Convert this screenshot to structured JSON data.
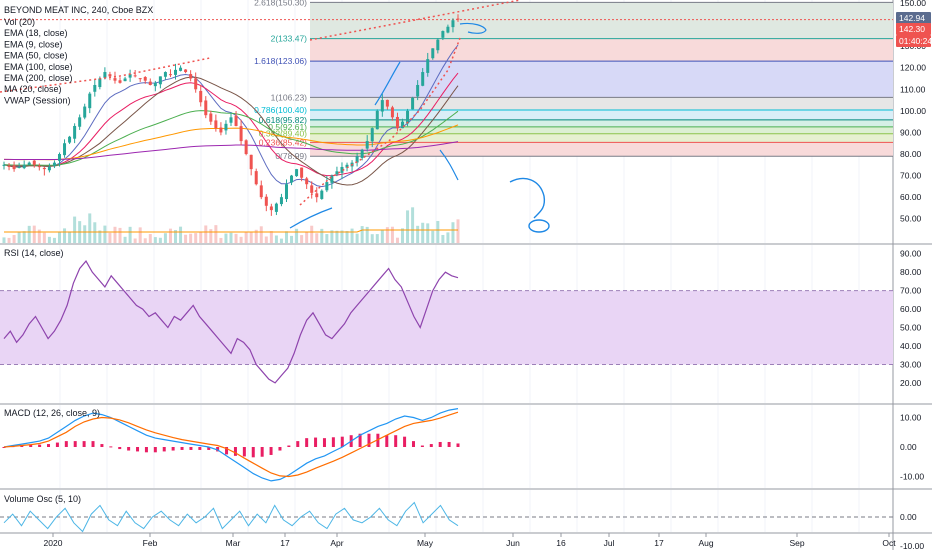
{
  "header": {
    "symbol_line": "BEYOND MEAT INC, 240, Cboe BZX"
  },
  "main_legend": [
    "Vol (20)",
    "EMA (18, close)",
    "EMA (9, close)",
    "EMA (50, close)",
    "EMA (100, close)",
    "EMA (200, close)",
    "MA (20, close)",
    "VWAP (Session)"
  ],
  "pane_titles": {
    "rsi": "RSI (14, close)",
    "macd": "MACD (12, 26, close, 9)",
    "vol_osc": "Volume Osc (5, 10)"
  },
  "price_badges": {
    "last": "142.94",
    "current": "142.30",
    "countdown": "01:40:24"
  },
  "colors": {
    "up": "#26a69a",
    "down": "#ef5350",
    "badge_last": "#5b6c8f",
    "badge_current": "#ef5350",
    "ema18": "#e91e63",
    "ema9": "#5c6bc0",
    "ema50": "#4caf50",
    "ema100": "#ff9800",
    "ema200": "#9c27b0",
    "ma20": "#795548",
    "rsi_line": "#8e44ad",
    "rsi_band": "#e9d5f5",
    "macd_line": "#2196f3",
    "signal_line": "#ff6d00",
    "histogram": "#e91e63",
    "vol_osc_line": "#4db6e6",
    "trend_line": "#ef5350",
    "drawing": "#1e88e5"
  },
  "x_axis": [
    "2020",
    "Feb",
    "Mar",
    "17",
    "Apr",
    "May",
    "Jun",
    "16",
    "Jul",
    "17",
    "Aug",
    "Sep",
    "Oct"
  ],
  "chart_data": [
    {
      "type": "candlestick",
      "pane": "price",
      "y_ticks": [
        "150.00",
        "140.00",
        "130.00",
        "120.00",
        "110.00",
        "100.00",
        "90.00",
        "80.00",
        "70.00",
        "60.00",
        "50.00"
      ],
      "ylim": [
        42,
        150
      ],
      "fib_levels": [
        {
          "label": "2.618(150.30)",
          "value": 150.3,
          "fill": "#dfe8e1"
        },
        {
          "label": "2(133.47)",
          "value": 133.47,
          "fill": "#f8dada"
        },
        {
          "label": "1.618(123.06)",
          "value": 123.06,
          "fill": "#d7d9f7"
        },
        {
          "label": "1(106.23)",
          "value": 106.23,
          "fill": "#e6e6e6"
        },
        {
          "label": "0.786(100.40)",
          "value": 100.4,
          "fill": "#d9eef7"
        },
        {
          "label": "0.618(95.82)",
          "value": 95.82,
          "fill": "#d5efe6"
        },
        {
          "label": "0.5(92.61)",
          "value": 92.61,
          "fill": "#dcefd2"
        },
        {
          "label": "0.382(89.40)",
          "value": 89.4,
          "fill": "#e6f0d0"
        },
        {
          "label": "0.236(85.42)",
          "value": 85.42,
          "fill": "#f8dada"
        },
        {
          "label": "0(78.99)",
          "value": 78.99,
          "fill": ""
        }
      ],
      "closes": [
        75,
        74,
        73,
        74,
        75,
        76,
        75,
        74,
        73,
        74,
        76,
        80,
        85,
        88,
        93,
        97,
        102,
        108,
        112,
        115,
        118,
        116,
        114,
        113,
        115,
        117,
        116,
        115,
        114,
        112,
        113,
        116,
        118,
        117,
        119,
        120,
        118,
        115,
        110,
        104,
        98,
        95,
        92,
        90,
        94,
        97,
        93,
        86,
        80,
        73,
        66,
        60,
        56,
        54,
        57,
        60,
        66,
        70,
        73,
        69,
        66,
        62,
        60,
        63,
        67,
        70,
        72,
        74,
        75,
        76,
        79,
        82,
        86,
        92,
        100,
        105,
        102,
        97,
        92,
        95,
        100,
        106,
        112,
        118,
        124,
        129,
        133,
        137,
        139,
        142,
        142.3
      ]
    },
    {
      "type": "line",
      "pane": "rsi",
      "y_ticks": [
        "90.00",
        "80.00",
        "70.00",
        "60.00",
        "50.00",
        "40.00",
        "30.00",
        "20.00"
      ],
      "ylim": [
        14,
        92
      ],
      "band": [
        30,
        70
      ],
      "values": [
        44,
        48,
        42,
        46,
        52,
        56,
        50,
        44,
        48,
        54,
        62,
        74,
        82,
        86,
        80,
        76,
        72,
        78,
        74,
        70,
        66,
        62,
        60,
        56,
        58,
        54,
        50,
        56,
        54,
        58,
        62,
        56,
        52,
        48,
        44,
        40,
        36,
        44,
        42,
        38,
        30,
        26,
        22,
        20,
        24,
        28,
        36,
        46,
        54,
        58,
        52,
        46,
        44,
        48,
        52,
        58,
        62,
        66,
        70,
        74,
        78,
        82,
        76,
        72,
        64,
        56,
        50,
        60,
        70,
        76,
        80,
        78,
        77
      ]
    },
    {
      "type": "line",
      "pane": "macd",
      "y_ticks": [
        "10.00",
        "0.00",
        "-10.00"
      ],
      "ylim": [
        -13,
        14
      ],
      "series": [
        {
          "name": "MACD",
          "values": [
            0,
            0.5,
            1,
            1.5,
            2,
            3,
            5,
            7,
            9,
            10.5,
            11.5,
            11,
            10,
            8.5,
            7,
            5.5,
            4,
            3,
            2.5,
            2,
            1.5,
            1,
            0.5,
            0,
            -1,
            -3,
            -5,
            -7,
            -9,
            -10.5,
            -11.5,
            -11,
            -9.5,
            -7.5,
            -5.5,
            -4,
            -3,
            -1.5,
            0,
            2,
            4,
            5.5,
            7,
            8,
            9.5,
            10.5,
            10,
            9,
            10,
            11.5,
            12.5,
            13
          ]
        },
        {
          "name": "Signal",
          "values": [
            0,
            0.2,
            0.5,
            0.8,
            1.2,
            2,
            3.5,
            5,
            7,
            8.5,
            9.5,
            10,
            9.8,
            9.2,
            8.2,
            7,
            5.8,
            4.8,
            4,
            3.2,
            2.5,
            2,
            1.5,
            1,
            0.5,
            -0.5,
            -2,
            -3.8,
            -5.5,
            -7.2,
            -8.8,
            -9.8,
            -10,
            -9.5,
            -8.5,
            -7.2,
            -6,
            -4.8,
            -3.5,
            -2,
            -0.5,
            1,
            2.5,
            4,
            5.5,
            7,
            8,
            8.5,
            9,
            9.8,
            10.8,
            11.8
          ]
        }
      ],
      "histogram": [
        0,
        0.3,
        0.5,
        0.7,
        0.8,
        1,
        1.5,
        2,
        2,
        2,
        2,
        1,
        0.2,
        -0.7,
        -1.2,
        -1.5,
        -1.8,
        -1.8,
        -1.5,
        -1.2,
        -1,
        -1,
        -1,
        -1,
        -1.5,
        -2.5,
        -3,
        -3.2,
        -3.5,
        -3.3,
        -2.7,
        -1.2,
        0.5,
        2,
        3,
        3.2,
        3,
        3.3,
        3.5,
        4,
        4.5,
        4.5,
        4.5,
        4,
        4,
        3.5,
        2,
        0.5,
        1,
        1.7,
        1.7,
        1.2
      ]
    },
    {
      "type": "line",
      "pane": "volume_oscillator",
      "y_ticks": [
        "0.00",
        "-10.00"
      ],
      "ylim": [
        -16,
        8
      ],
      "values": [
        -2,
        1,
        -3,
        2,
        -1,
        -4,
        0,
        3,
        -2,
        -5,
        1,
        4,
        -1,
        -3,
        2,
        -2,
        -4,
        0,
        2,
        -1,
        -3,
        1,
        -2,
        0,
        3,
        -4,
        -1,
        2,
        -3,
        1,
        -2,
        4,
        -1,
        -3,
        0,
        2,
        -2,
        -4,
        1,
        3,
        -1,
        -2,
        0,
        3,
        -1,
        -3,
        2,
        5,
        -2,
        1,
        4,
        -1,
        -3
      ]
    }
  ]
}
